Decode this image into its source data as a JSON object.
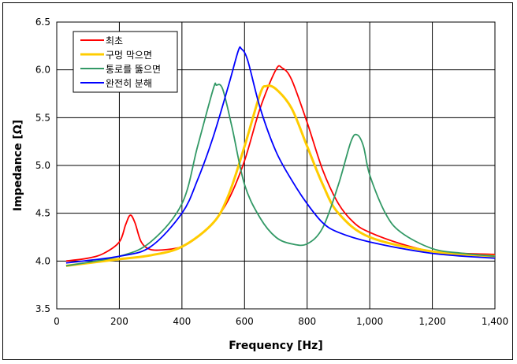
{
  "chart_data": {
    "type": "line",
    "xlabel": "Frequency [Hz]",
    "ylabel": "Impedance [Ω]",
    "xlim": [
      0,
      1400
    ],
    "ylim": [
      3.5,
      6.5
    ],
    "xticks": [
      0,
      200,
      400,
      600,
      800,
      "1,000",
      "1,200",
      "1,400"
    ],
    "yticks": [
      "3.5",
      "4.0",
      "4.5",
      "5.0",
      "5.5",
      "6.0",
      "6.5"
    ],
    "grid": true,
    "legend_position": "top-left",
    "series": [
      {
        "name": "최초",
        "color": "#ff0000",
        "x": [
          30,
          100,
          150,
          200,
          220,
          235,
          250,
          270,
          300,
          350,
          400,
          450,
          500,
          550,
          600,
          650,
          700,
          720,
          750,
          800,
          850,
          900,
          950,
          1000,
          1100,
          1200,
          1300,
          1400
        ],
        "y": [
          4.0,
          4.03,
          4.08,
          4.2,
          4.38,
          4.48,
          4.4,
          4.2,
          4.12,
          4.12,
          4.15,
          4.25,
          4.4,
          4.65,
          5.05,
          5.6,
          6.0,
          6.02,
          5.9,
          5.45,
          4.95,
          4.6,
          4.4,
          4.3,
          4.18,
          4.1,
          4.08,
          4.07
        ]
      },
      {
        "name": "구멍 막으면",
        "color": "#ffcc00",
        "x": [
          30,
          200,
          300,
          400,
          500,
          550,
          600,
          650,
          670,
          700,
          750,
          800,
          850,
          900,
          1000,
          1200,
          1400
        ],
        "y": [
          3.95,
          4.02,
          4.06,
          4.15,
          4.4,
          4.7,
          5.2,
          5.75,
          5.83,
          5.8,
          5.6,
          5.2,
          4.8,
          4.5,
          4.25,
          4.1,
          4.05
        ]
      },
      {
        "name": "통로를 뚫으면",
        "color": "#339966",
        "x": [
          30,
          200,
          300,
          400,
          450,
          500,
          510,
          530,
          560,
          600,
          650,
          700,
          750,
          800,
          850,
          900,
          940,
          960,
          980,
          1000,
          1050,
          1100,
          1200,
          1300,
          1400
        ],
        "y": [
          3.95,
          4.05,
          4.2,
          4.6,
          5.2,
          5.8,
          5.84,
          5.8,
          5.4,
          4.8,
          4.45,
          4.25,
          4.18,
          4.18,
          4.35,
          4.8,
          5.25,
          5.32,
          5.2,
          4.9,
          4.5,
          4.3,
          4.13,
          4.08,
          4.05
        ]
      },
      {
        "name": "완전히 분해",
        "color": "#0000ff",
        "x": [
          30,
          200,
          300,
          400,
          450,
          500,
          550,
          580,
          590,
          610,
          650,
          700,
          750,
          800,
          850,
          900,
          1000,
          1200,
          1400
        ],
        "y": [
          3.98,
          4.05,
          4.15,
          4.5,
          4.85,
          5.3,
          5.85,
          6.2,
          6.22,
          6.1,
          5.6,
          5.15,
          4.85,
          4.6,
          4.4,
          4.3,
          4.2,
          4.08,
          4.03
        ]
      }
    ]
  }
}
